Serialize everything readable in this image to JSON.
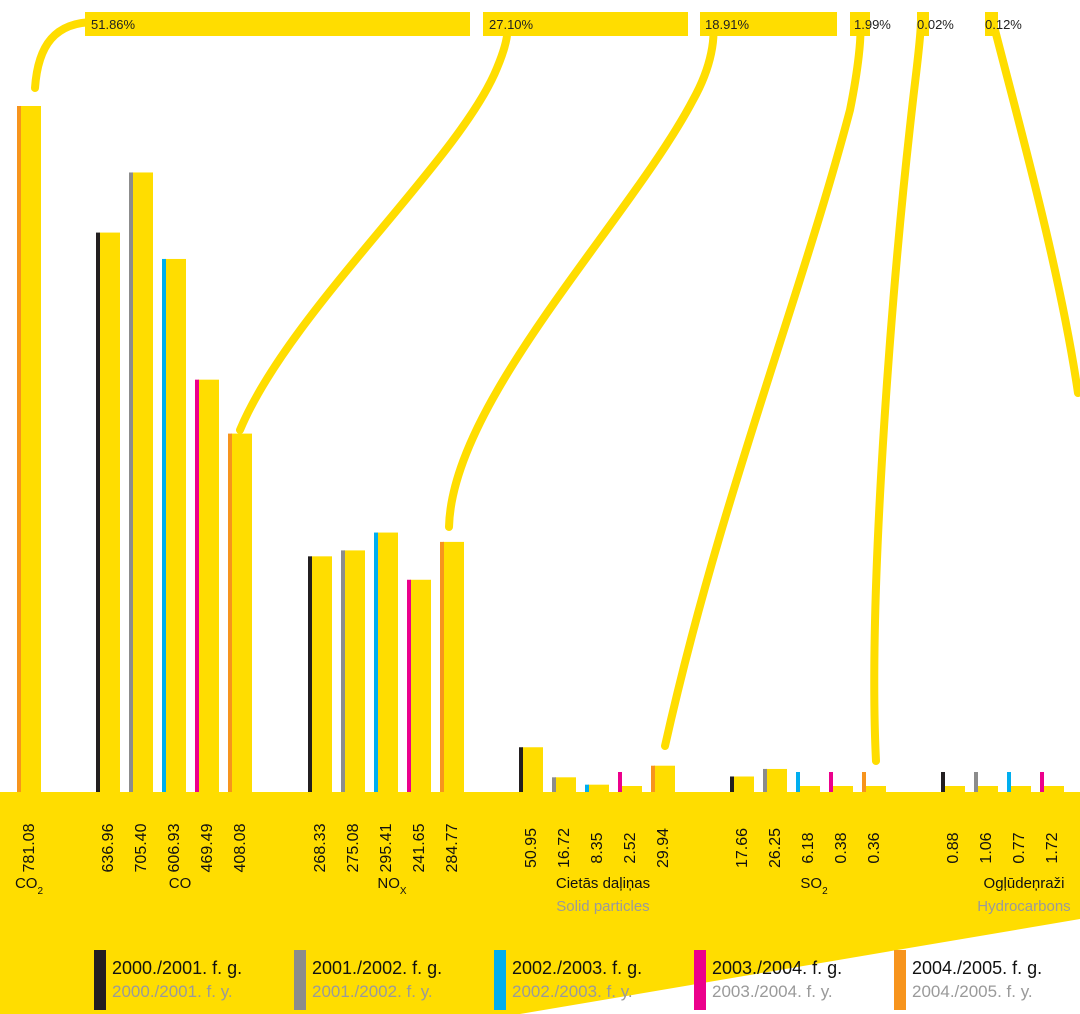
{
  "chart_data": {
    "type": "bar",
    "unit": "",
    "colors": {
      "bar": "#FFDD00",
      "band": "#FFDD00",
      "legend_text": "#111111",
      "legend_sub": "#9a9a9a"
    },
    "periods": [
      {
        "label": "2000./2001. f. g.",
        "sublabel": "2000./2001. f. y.",
        "color": "#231F20"
      },
      {
        "label": "2001./2002. f. g.",
        "sublabel": "2001./2002. f. y.",
        "color": "#8C8C8C"
      },
      {
        "label": "2002./2003. f. g.",
        "sublabel": "2002./2003. f. y.",
        "color": "#00AEEF"
      },
      {
        "label": "2003./2004. f. g.",
        "sublabel": "2003./2004. f. y.",
        "color": "#EC008C"
      },
      {
        "label": "2004./2005. f. g.",
        "sublabel": "2004./2005. f. y.",
        "color": "#F7941D"
      }
    ],
    "groups": [
      {
        "label": "CO",
        "label_sub": "2",
        "sublabel": "",
        "share": "51.86%",
        "periods": [
          4
        ],
        "values": [
          781.08
        ]
      },
      {
        "label": "CO",
        "label_sub": "",
        "sublabel": "",
        "share": "27.10%",
        "periods": [
          0,
          1,
          2,
          3,
          4
        ],
        "values": [
          636.96,
          705.4,
          606.93,
          469.49,
          408.08
        ]
      },
      {
        "label": "NO",
        "label_sub": "X",
        "sublabel": "",
        "share": "18.91%",
        "periods": [
          0,
          1,
          2,
          3,
          4
        ],
        "values": [
          268.33,
          275.08,
          295.41,
          241.65,
          284.77
        ]
      },
      {
        "label": "Cietās daļiņas",
        "label_sub": "",
        "sublabel": "Solid particles",
        "share": "1.99%",
        "periods": [
          0,
          1,
          2,
          3,
          4
        ],
        "values": [
          50.95,
          16.72,
          8.35,
          2.52,
          29.94
        ]
      },
      {
        "label": "SO",
        "label_sub": "2",
        "sublabel": "",
        "share": "0.02%",
        "periods": [
          0,
          1,
          2,
          3,
          4
        ],
        "values": [
          17.66,
          26.25,
          6.18,
          0.38,
          0.36
        ]
      },
      {
        "label": "Ogļūdeņraži",
        "label_sub": "",
        "sublabel": "Hydrocarbons",
        "share": "0.12%",
        "periods": [
          0,
          1,
          2,
          3
        ],
        "values": [
          0.88,
          1.06,
          0.77,
          1.72
        ]
      }
    ]
  }
}
